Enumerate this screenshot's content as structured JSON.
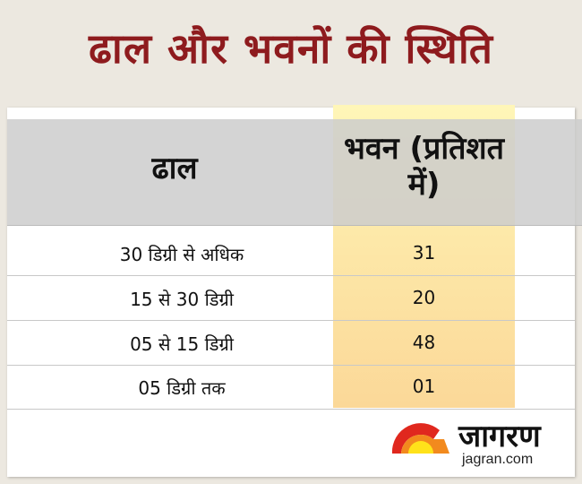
{
  "title": "ढाल और भवनों की स्थिति",
  "chart_data": {
    "type": "table",
    "columns": [
      "ढाल",
      "भवन (प्रतिशत में)"
    ],
    "rows": [
      {
        "slope": "30 डिग्री से अधिक",
        "value": "31"
      },
      {
        "slope": "15 से 30 डिग्री",
        "value": "20"
      },
      {
        "slope": "05 से 15 डिग्री",
        "value": "48"
      },
      {
        "slope": "05 डिग्री तक",
        "value": "01"
      }
    ],
    "colors": {
      "title": "#8e1b1e",
      "header": "#d2d2d2",
      "highlight_column": "#fde8a8",
      "background": "#ece8e0"
    }
  },
  "logo": {
    "text": "जागरण",
    "url": "jagran.com"
  }
}
